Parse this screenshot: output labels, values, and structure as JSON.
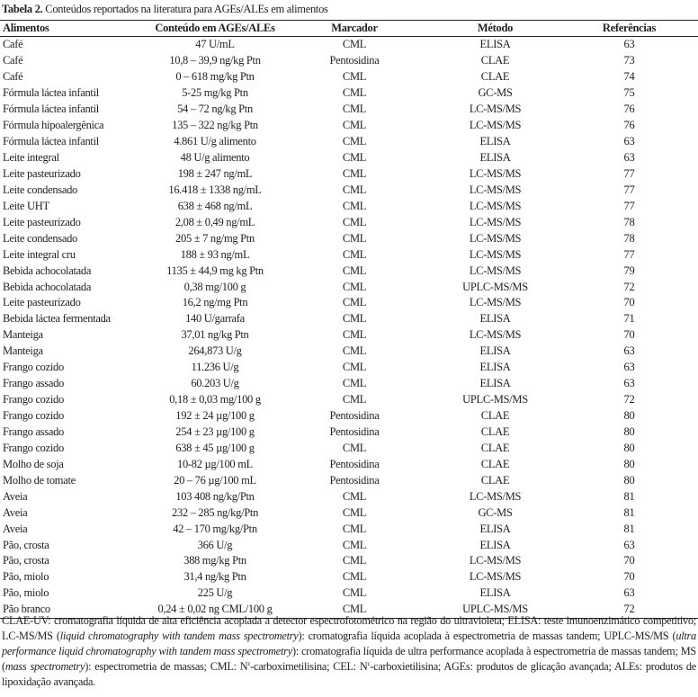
{
  "caption": {
    "label": "Tabela 2.",
    "text": " Conteúdos reportados na literatura para AGEs/ALEs em alimentos"
  },
  "table": {
    "headers": [
      "Alimentos",
      "Conteúdo em AGEs/ALEs",
      "Marcador",
      "Método",
      "Referências"
    ],
    "rows": [
      [
        "Café",
        "47 U/mL",
        "CML",
        "ELISA",
        "63"
      ],
      [
        "Café",
        "10,8 – 39,9 ng/kg Ptn",
        "Pentosidina",
        "CLAE",
        "73"
      ],
      [
        "Café",
        "0 – 618 mg/kg Ptn",
        "CML",
        "CLAE",
        "74"
      ],
      [
        "Fórmula láctea infantil",
        "5-25 mg/kg Ptn",
        "CML",
        "GC-MS",
        "75"
      ],
      [
        "Fórmula láctea infantil",
        "54 – 72 ng/kg Ptn",
        "CML",
        "LC-MS/MS",
        "76"
      ],
      [
        "Fórmula hipoalergênica",
        "135 – 322 ng/kg Ptn",
        "CML",
        "LC-MS/MS",
        "76"
      ],
      [
        "Fórmula láctea infantil",
        "4.861 U/g alimento",
        "CML",
        "ELISA",
        "63"
      ],
      [
        "Leite integral",
        "48 U/g alimento",
        "CML",
        "ELISA",
        "63"
      ],
      [
        "Leite pasteurizado",
        "198 ± 247 ng/mL",
        "CML",
        "LC-MS/MS",
        "77"
      ],
      [
        "Leite condensado",
        "16.418 ± 1338 ng/mL",
        "CML",
        "LC-MS/MS",
        "77"
      ],
      [
        "Leite UHT",
        "638 ± 468 ng/mL",
        "CML",
        "LC-MS/MS",
        "77"
      ],
      [
        "Leite pasteurizado",
        "2,08 ± 0,49 ng/mL",
        "CML",
        "LC-MS/MS",
        "78"
      ],
      [
        "Leite condensado",
        "205 ± 7 ng/mg Ptn",
        "CML",
        "LC-MS/MS",
        "78"
      ],
      [
        "Leite integral cru",
        "188 ± 93 ng/mL",
        "CML",
        "LC-MS/MS",
        "77"
      ],
      [
        "Bebida achocolatada",
        "1135 ± 44,9 mg kg Ptn",
        "CML",
        "LC-MS/MS",
        "79"
      ],
      [
        "Bebida achocolatada",
        "0,38 mg/100 g",
        "CML",
        "UPLC-MS/MS",
        "72"
      ],
      [
        "Leite pasteurizado",
        "16,2 ng/mg Ptn",
        "CML",
        "LC-MS/MS",
        "70"
      ],
      [
        "Bebida láctea fermentada",
        "140 U/garrafa",
        "CML",
        "ELISA",
        "71"
      ],
      [
        "Manteiga",
        "37,01 ng/kg Ptn",
        "CML",
        "LC-MS/MS",
        "70"
      ],
      [
        "Manteiga",
        "264,873 U/g",
        "CML",
        "ELISA",
        "63"
      ],
      [
        "Frango cozido",
        "11.236 U/g",
        "CML",
        "ELISA",
        "63"
      ],
      [
        "Frango assado",
        "60.203 U/g",
        "CML",
        "ELISA",
        "63"
      ],
      [
        "Frango cozido",
        "0,18 ± 0,03 mg/100 g",
        "CML",
        "UPLC-MS/MS",
        "72"
      ],
      [
        "Frango cozido",
        "192 ± 24 µg/100 g",
        "Pentosidina",
        "CLAE",
        "80"
      ],
      [
        "Frango assado",
        "254 ± 23 µg/100 g",
        "Pentosidina",
        "CLAE",
        "80"
      ],
      [
        "Frango cozido",
        "638 ± 45 µg/100 g",
        "CML",
        "CLAE",
        "80"
      ],
      [
        "Molho de soja",
        "10-82 µg/100 mL",
        "Pentosidina",
        "CLAE",
        "80"
      ],
      [
        "Molho de tomate",
        "20 – 76 µg/100 mL",
        "Pentosidina",
        "CLAE",
        "80"
      ],
      [
        "Aveia",
        "103 408 ng/kg/Ptn",
        "CML",
        "LC-MS/MS",
        "81"
      ],
      [
        "Aveia",
        "232 – 285 ng/kg/Ptn",
        "CML",
        "GC-MS",
        "81"
      ],
      [
        "Aveia",
        "42 – 170 mg/kg/Ptn",
        "CML",
        "ELISA",
        "81"
      ],
      [
        "Pão, crosta",
        "366 U/g",
        "CML",
        "ELISA",
        "63"
      ],
      [
        "Pão, crosta",
        "388 mg/kg Ptn",
        "CML",
        "LC-MS/MS",
        "70"
      ],
      [
        "Pão, miolo",
        "31,4 ng/kg Ptn",
        "CML",
        "LC-MS/MS",
        "70"
      ],
      [
        "Pão, miolo",
        "225 U/g",
        "CML",
        "ELISA",
        "63"
      ],
      [
        "Pão branco",
        "0,24 ± 0,02 ng CML/100 g",
        "CML",
        "UPLC-MS/MS",
        "72"
      ]
    ]
  },
  "footnote": [
    {
      "t": "CLAE-UV: cromatografia líquida de alta eficiência acoplada a detector espectrofotométrico na região do ultravioleta; ELISA: teste imunoenzimático competitivo; LC-MS/MS (",
      "s": "n"
    },
    {
      "t": "liquid chromatography with tandem mass spectrometry",
      "s": "i"
    },
    {
      "t": "): cromatografia líquida acoplada à espectrometria de massas tandem; UPLC-MS/MS (",
      "s": "n"
    },
    {
      "t": "ultra performance liquid chromatography with tandem mass spectrometry",
      "s": "i"
    },
    {
      "t": "): cromatografia líquida de ultra performance acoplada à espectrometria de massas tandem; MS (",
      "s": "n"
    },
    {
      "t": "mass spectrometry",
      "s": "i"
    },
    {
      "t": "): espectrometria de massas; CML: N",
      "s": "n"
    },
    {
      "t": "ε",
      "s": "sup"
    },
    {
      "t": "-carboximetilisina; CEL: N",
      "s": "n"
    },
    {
      "t": "ε",
      "s": "sup"
    },
    {
      "t": "-carboxietilisina; AGEs: produtos de glicação avançada; ALEs: produtos de lipoxidação avançada.",
      "s": "n"
    }
  ]
}
